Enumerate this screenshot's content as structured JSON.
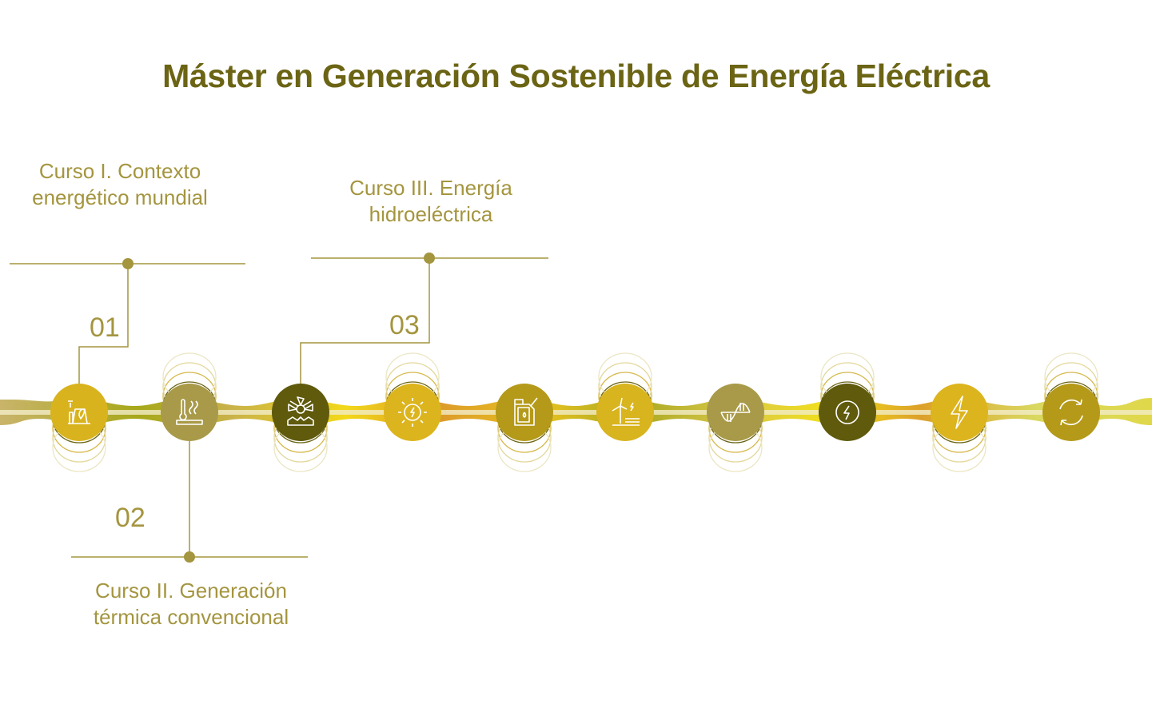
{
  "title": "Máster en Generación Sostenible de Energía Eléctrica",
  "courses": [
    {
      "number": "01",
      "label": "Curso I. Contexto energético mundial"
    },
    {
      "number": "02",
      "label": "Curso II. Generación térmica convencional"
    },
    {
      "number": "03",
      "label": "Curso III. Energía hidroeléctrica"
    }
  ],
  "nodes": [
    {
      "icon": "power-plant-leaf-icon",
      "color": "#d9b31e",
      "arcs": "below"
    },
    {
      "icon": "thermometer-heat-icon",
      "color": "#a89a48",
      "arcs": "above"
    },
    {
      "icon": "hydro-turbine-icon",
      "color": "#5f5a0c",
      "arcs": "below"
    },
    {
      "icon": "solar-energy-icon",
      "color": "#dcb41e",
      "arcs": "above"
    },
    {
      "icon": "fuel-can-icon",
      "color": "#b59a1a",
      "arcs": "below"
    },
    {
      "icon": "wind-turbine-icon",
      "color": "#d8b41e",
      "arcs": "above"
    },
    {
      "icon": "wave-energy-icon",
      "color": "#a89a48",
      "arcs": "below"
    },
    {
      "icon": "electricity-circle-icon",
      "color": "#5f5a0c",
      "arcs": "above"
    },
    {
      "icon": "lightning-bolt-icon",
      "color": "#dcb41e",
      "arcs": "below"
    },
    {
      "icon": "recycle-arrows-icon",
      "color": "#b59a1a",
      "arcs": "above"
    }
  ],
  "colors": {
    "title": "#6b6414",
    "label": "#a4953f",
    "connector": "#a4953f"
  }
}
